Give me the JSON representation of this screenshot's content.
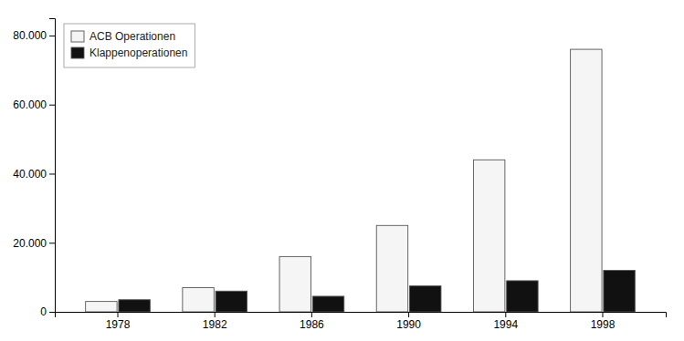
{
  "chart_data": {
    "type": "bar",
    "categories": [
      "1978",
      "1982",
      "1986",
      "1990",
      "1994",
      "1998"
    ],
    "series": [
      {
        "name": "ACB Operationen",
        "color": "#f5f5f5",
        "values": [
          3000,
          7000,
          16000,
          25000,
          44000,
          76000
        ]
      },
      {
        "name": "Klappenoperationen",
        "color": "#111111",
        "values": [
          3500,
          6000,
          4500,
          7500,
          9000,
          12000
        ]
      }
    ],
    "ylim": [
      0,
      85000
    ],
    "yticks": [
      0,
      {
        "value": 20000,
        "label": "20.000"
      },
      {
        "value": 40000,
        "label": "40.000"
      },
      {
        "value": 60000,
        "label": "60.000"
      },
      {
        "value": 80000,
        "label": "80.000"
      }
    ],
    "grid": false,
    "legend": "upper left"
  }
}
